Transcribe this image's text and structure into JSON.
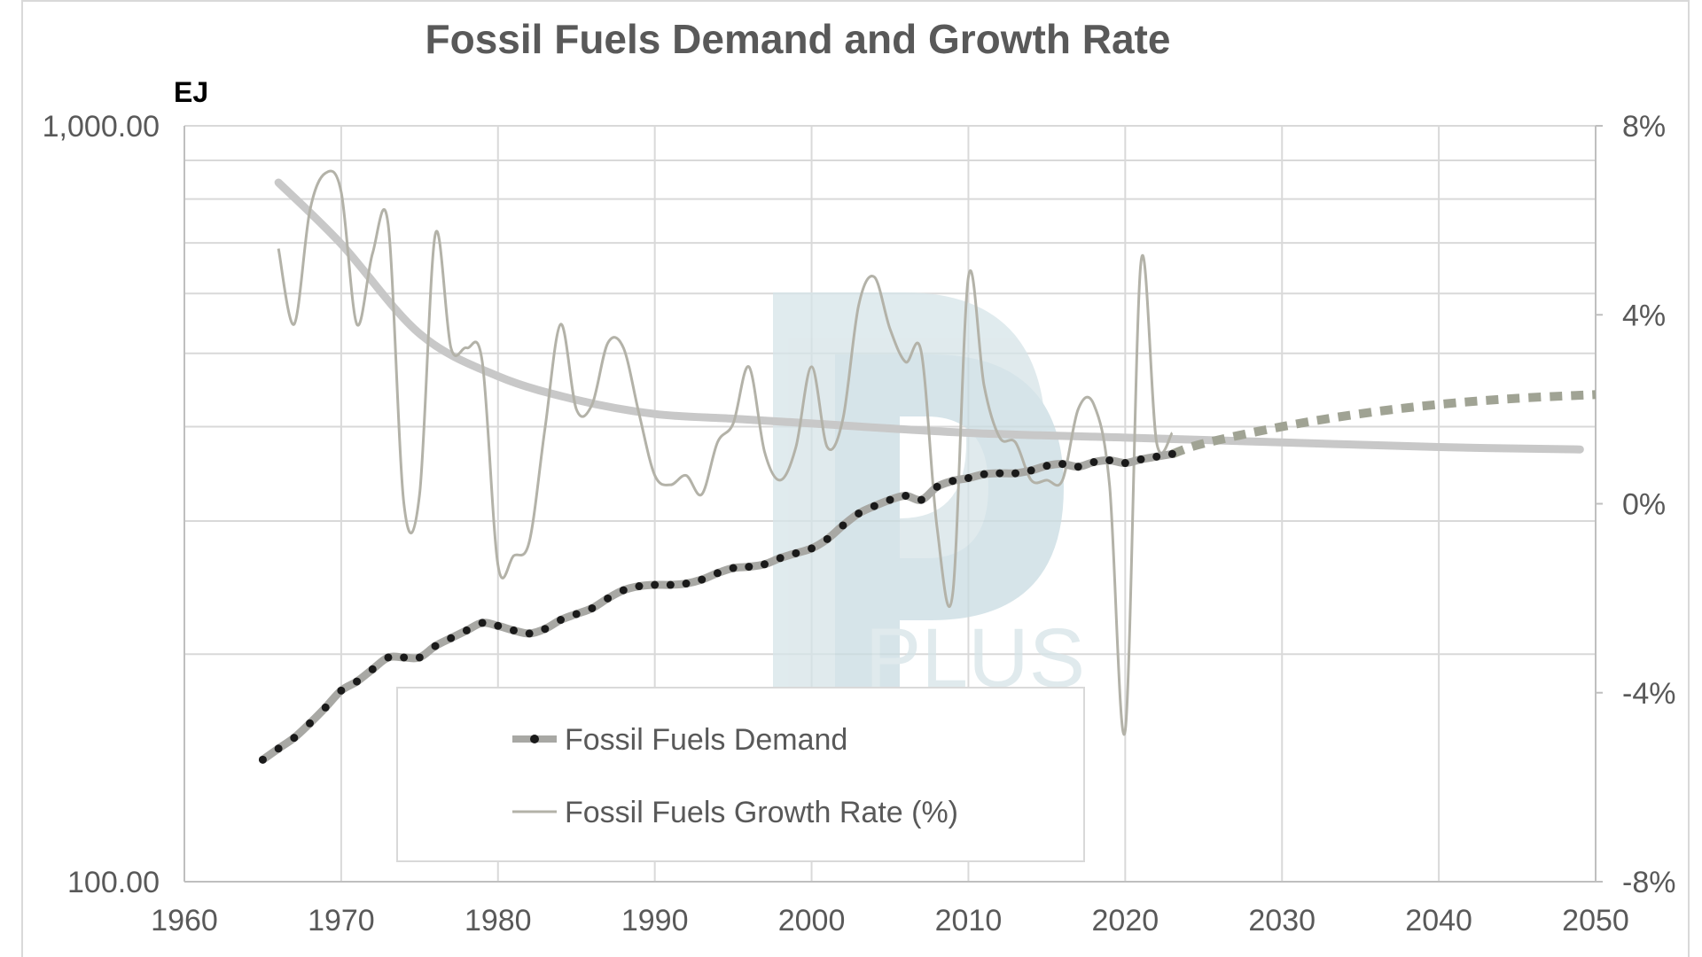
{
  "chart_data": {
    "type": "line",
    "title": "Fossil Fuels Demand and Growth Rate",
    "y_left_label": "EJ",
    "y_left_scale": "log",
    "y_left_ticks": [
      "1,000.00",
      "100.00"
    ],
    "y_left_range": [
      100,
      1000
    ],
    "y_right_ticks": [
      "8%",
      "4%",
      "0%",
      "-4%",
      "-8%"
    ],
    "y_right_range": [
      -8,
      8
    ],
    "x_ticks": [
      "1960",
      "1970",
      "1980",
      "1990",
      "2000",
      "2010",
      "2020",
      "2030",
      "2040",
      "2050"
    ],
    "x_range": [
      1960,
      2050
    ],
    "grid": true,
    "watermark": "PP PLUS",
    "legend": [
      {
        "name": "Fossil Fuels Demand",
        "style": "dotted-black-on-gray"
      },
      {
        "name": "Fossil Fuels Growth Rate (%)",
        "style": "thin-gray"
      }
    ],
    "colors": {
      "demand_dots": "#1a1a1a",
      "demand_band": "#a8a8a4",
      "forecast": "#a0a394",
      "growth": "#b3b2a8",
      "trend": "#c8c8c8",
      "grid": "#d9d9d9",
      "axis_text": "#595959",
      "watermark": "#d6e4e8"
    },
    "demand": {
      "x": [
        1965,
        1966,
        1967,
        1968,
        1969,
        1970,
        1971,
        1972,
        1973,
        1974,
        1975,
        1976,
        1977,
        1978,
        1979,
        1980,
        1981,
        1982,
        1983,
        1984,
        1985,
        1986,
        1987,
        1988,
        1989,
        1990,
        1991,
        1992,
        1993,
        1994,
        1995,
        1996,
        1997,
        1998,
        1999,
        2000,
        2001,
        2002,
        2003,
        2004,
        2005,
        2006,
        2007,
        2008,
        2009,
        2010,
        2011,
        2012,
        2013,
        2014,
        2015,
        2016,
        2017,
        2018,
        2019,
        2020,
        2021,
        2022,
        2023
      ],
      "y": [
        145,
        150,
        155,
        162,
        170,
        179,
        184,
        191,
        198,
        198,
        198,
        205,
        210,
        215,
        220,
        218,
        215,
        213,
        216,
        222,
        226,
        230,
        237,
        243,
        246,
        247,
        247,
        248,
        251,
        256,
        260,
        261,
        263,
        268,
        272,
        276,
        284,
        296,
        307,
        314,
        320,
        324,
        320,
        333,
        339,
        342,
        346,
        347,
        347,
        350,
        355,
        357,
        354,
        359,
        361,
        358,
        362,
        365,
        368
      ]
    },
    "forecast": {
      "x": [
        2023,
        2025,
        2030,
        2035,
        2040,
        2045,
        2050
      ],
      "y": [
        368,
        380,
        400,
        416,
        428,
        436,
        441
      ]
    },
    "growth_rate": {
      "x": [
        1966,
        1967,
        1968,
        1969,
        1970,
        1971,
        1972,
        1973,
        1974,
        1975,
        1976,
        1977,
        1978,
        1979,
        1980,
        1981,
        1982,
        1983,
        1984,
        1985,
        1986,
        1987,
        1988,
        1989,
        1990,
        1991,
        1992,
        1993,
        1994,
        1995,
        1996,
        1997,
        1998,
        1999,
        2000,
        2001,
        2002,
        2003,
        2004,
        2005,
        2006,
        2007,
        2008,
        2009,
        2010,
        2011,
        2012,
        2013,
        2014,
        2015,
        2016,
        2017,
        2018,
        2019,
        2020,
        2021,
        2022,
        2023
      ],
      "y": [
        5.4,
        3.8,
        6.2,
        7.0,
        6.6,
        3.8,
        5.3,
        5.9,
        0,
        0.2,
        5.7,
        3.3,
        3.3,
        3.0,
        -1.3,
        -1.1,
        -0.8,
        1.6,
        3.8,
        2.0,
        2.1,
        3.4,
        3.3,
        1.9,
        0.6,
        0.4,
        0.6,
        0.2,
        1.3,
        1.7,
        2.9,
        1.1,
        0.5,
        1.2,
        2.9,
        1.2,
        1.8,
        4.2,
        4.8,
        3.7,
        3.0,
        3.2,
        -0.5,
        -1.9,
        4.8,
        2.5,
        1.4,
        1.3,
        0.5,
        0.5,
        0.5,
        2.0,
        2.1,
        0.4,
        -4.8,
        5.1,
        1.3,
        1.5
      ]
    },
    "growth_trend": {
      "x": [
        1966,
        1970,
        1975,
        1980,
        1985,
        1990,
        1995,
        2000,
        2010,
        2020,
        2030,
        2040,
        2049
      ],
      "y": [
        6.8,
        5.5,
        3.6,
        2.7,
        2.2,
        1.9,
        1.8,
        1.7,
        1.5,
        1.4,
        1.3,
        1.2,
        1.15
      ]
    }
  }
}
